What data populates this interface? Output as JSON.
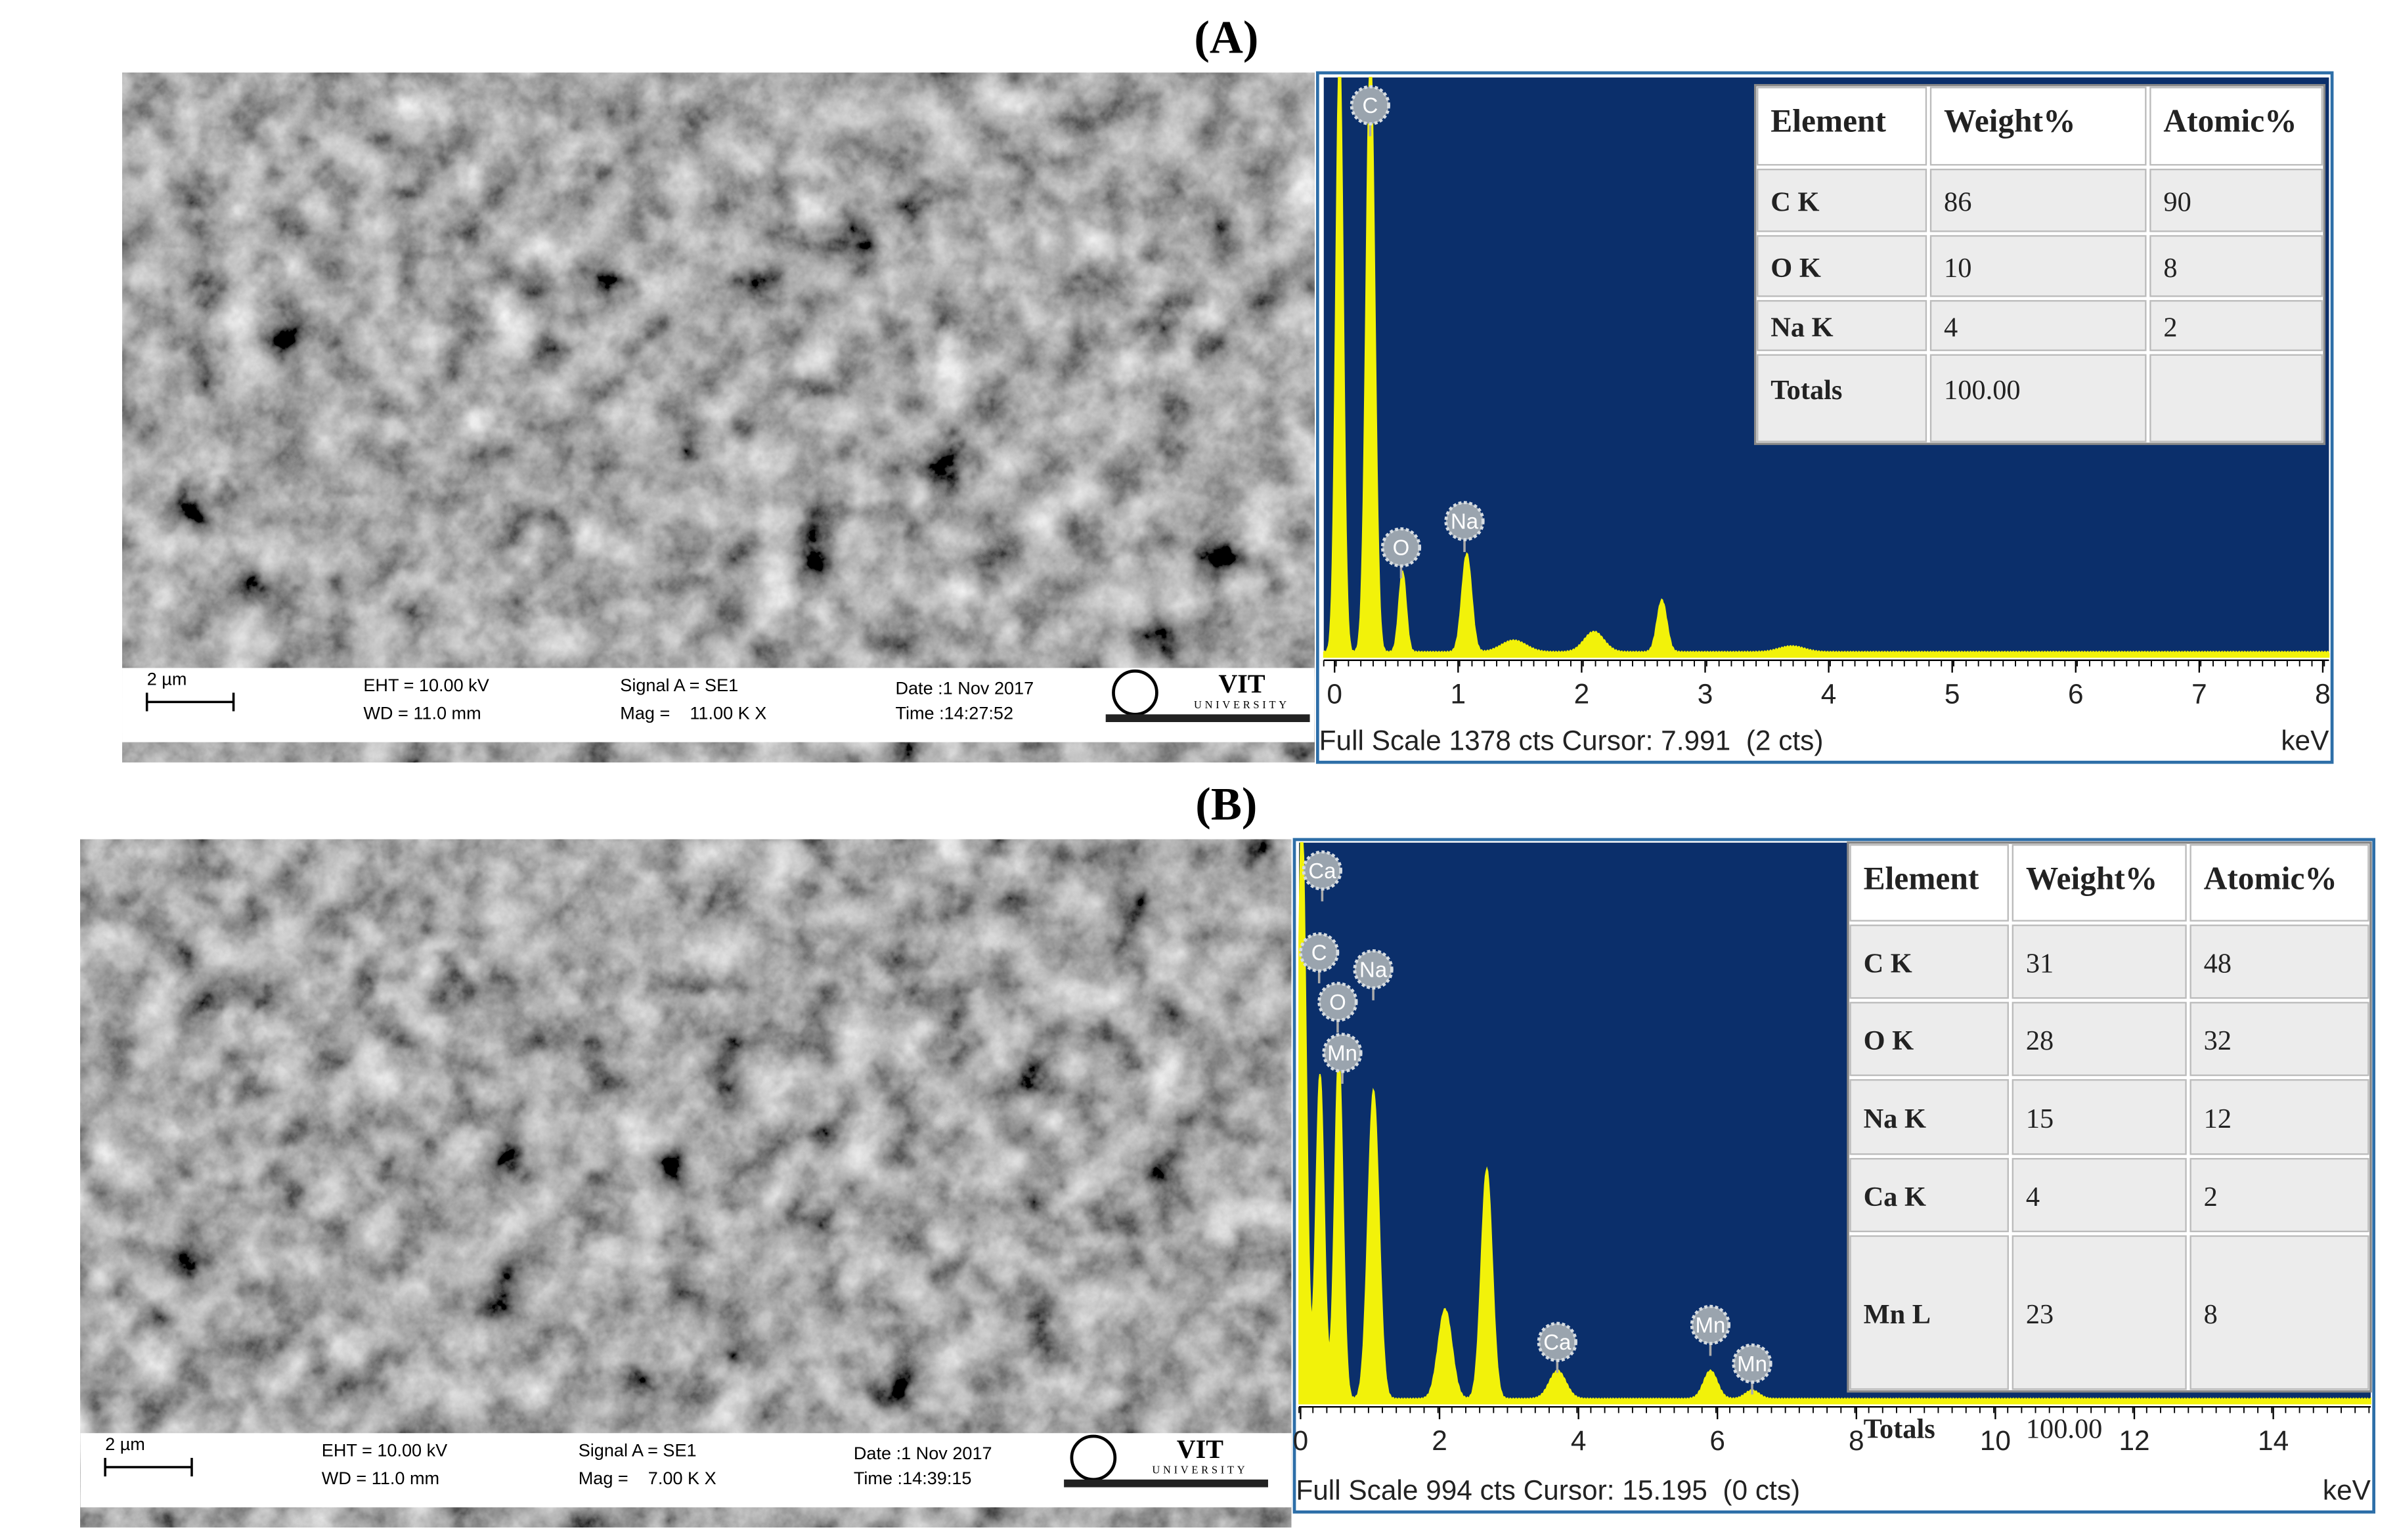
{
  "panels": [
    {
      "label": "(A)",
      "sem": {
        "scale_bar": "2 µm",
        "eht": "EHT = 10.00 kV",
        "wd": "WD = 11.0 mm",
        "signal": "Signal A = SE1",
        "mag": "Mag =    11.00 K X",
        "date": "Date :1 Nov 2017",
        "time": "Time :14:27:52",
        "logo": "VIT",
        "logo_sub": "UNIVERSITY"
      },
      "spectrum": {
        "xticks": [
          0,
          1,
          2,
          3,
          4,
          5,
          6,
          7,
          8
        ],
        "x_unit": "keV",
        "footer": "Full Scale 1378 cts Cursor: 7.991  (2 cts)",
        "peak_labels": [
          "C",
          "O",
          "Na"
        ]
      },
      "table": {
        "header": [
          "Element",
          "Weight%",
          "Atomic%"
        ],
        "rows": [
          [
            "C K",
            "86",
            "90"
          ],
          [
            "O K",
            "10",
            "8"
          ],
          [
            "Na K",
            "4",
            "2"
          ],
          [
            "Totals",
            "100.00"
          ]
        ]
      }
    },
    {
      "label": "(B)",
      "sem": {
        "scale_bar": "2 µm",
        "eht": "EHT = 10.00 kV",
        "wd": "WD = 11.0 mm",
        "signal": "Signal A = SE1",
        "mag": "Mag =    7.00 K X",
        "date": "Date :1 Nov 2017",
        "time": "Time :14:39:15",
        "logo": "VIT",
        "logo_sub": "UNIVERSITY"
      },
      "spectrum": {
        "xticks": [
          0,
          2,
          4,
          6,
          8,
          10,
          12,
          14
        ],
        "x_unit": "keV",
        "footer": "Full Scale 994 cts Cursor: 15.195  (0 cts)",
        "peak_labels": [
          "Ca",
          "C",
          "Na",
          "O",
          "Mn",
          "Ca",
          "Mn",
          "Mn"
        ]
      },
      "table": {
        "header": [
          "Element",
          "Weight%",
          "Atomic%"
        ],
        "rows": [
          [
            "C K",
            "31",
            "48"
          ],
          [
            "O K",
            "28",
            "32"
          ],
          [
            "Na K",
            "15",
            "12"
          ],
          [
            "Ca K",
            "4",
            "2"
          ],
          [
            "Mn L",
            "23",
            "8"
          ],
          [
            "Totals",
            "100.00"
          ]
        ]
      }
    }
  ]
}
